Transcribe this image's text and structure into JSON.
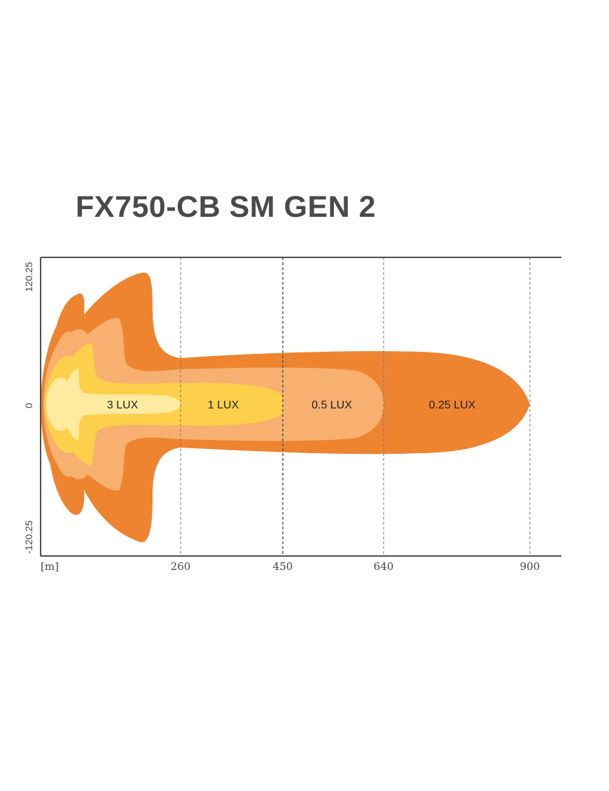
{
  "title": "FX750-CB SM GEN 2",
  "chart_data": {
    "type": "area",
    "title": "FX750-CB SM GEN 2",
    "x_unit_label": "[m]",
    "x_ticks": [
      260,
      450,
      640,
      900
    ],
    "y_ticks": [
      120.25,
      0,
      -120.25
    ],
    "xlim": [
      0,
      970
    ],
    "ylim": [
      -120.25,
      120.25
    ],
    "grid": "vertical dashed lines at x ticks",
    "zones": [
      {
        "label": "0.25 LUX",
        "reach": 900,
        "color": "#ee8430"
      },
      {
        "label": "0.5 LUX",
        "reach": 640,
        "color": "#f7b06f"
      },
      {
        "label": "1 LUX",
        "reach": 450,
        "color": "#fcd04a"
      },
      {
        "label": "3 LUX",
        "reach": 260,
        "color": "#feeb9f"
      }
    ],
    "colors": {
      "axis": "#4d4d4d",
      "grid": "#777777"
    }
  }
}
